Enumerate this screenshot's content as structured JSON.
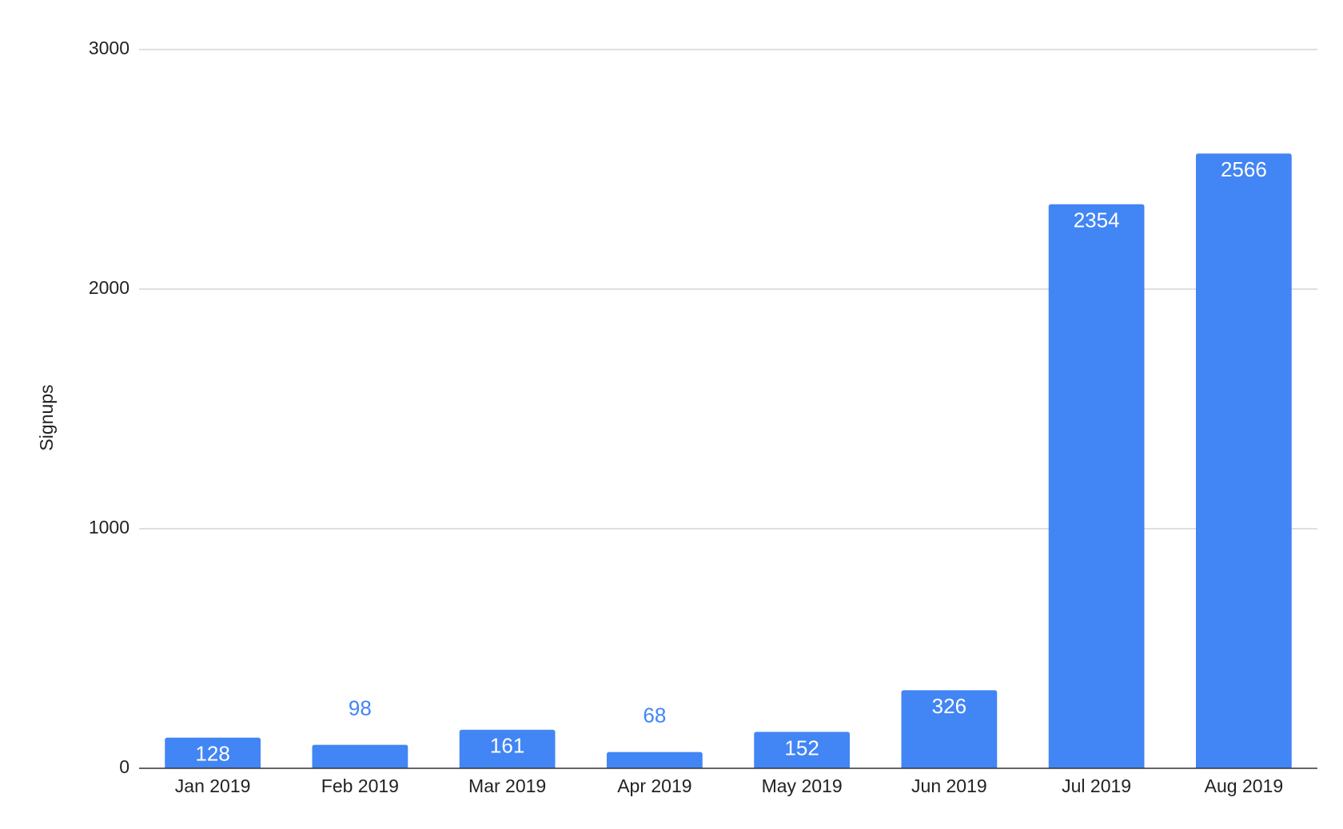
{
  "chart_data": {
    "type": "bar",
    "y_label": "Signups",
    "categories": [
      "Jan 2019",
      "Feb 2019",
      "Mar 2019",
      "Apr 2019",
      "May 2019",
      "Jun 2019",
      "Jul 2019",
      "Aug 2019"
    ],
    "values": [
      128,
      98,
      161,
      68,
      152,
      326,
      2354,
      2566
    ],
    "color": "#4285f4",
    "ylim": [
      0,
      3000
    ],
    "yticks": [
      0,
      1000,
      2000,
      3000
    ],
    "grid": true
  }
}
